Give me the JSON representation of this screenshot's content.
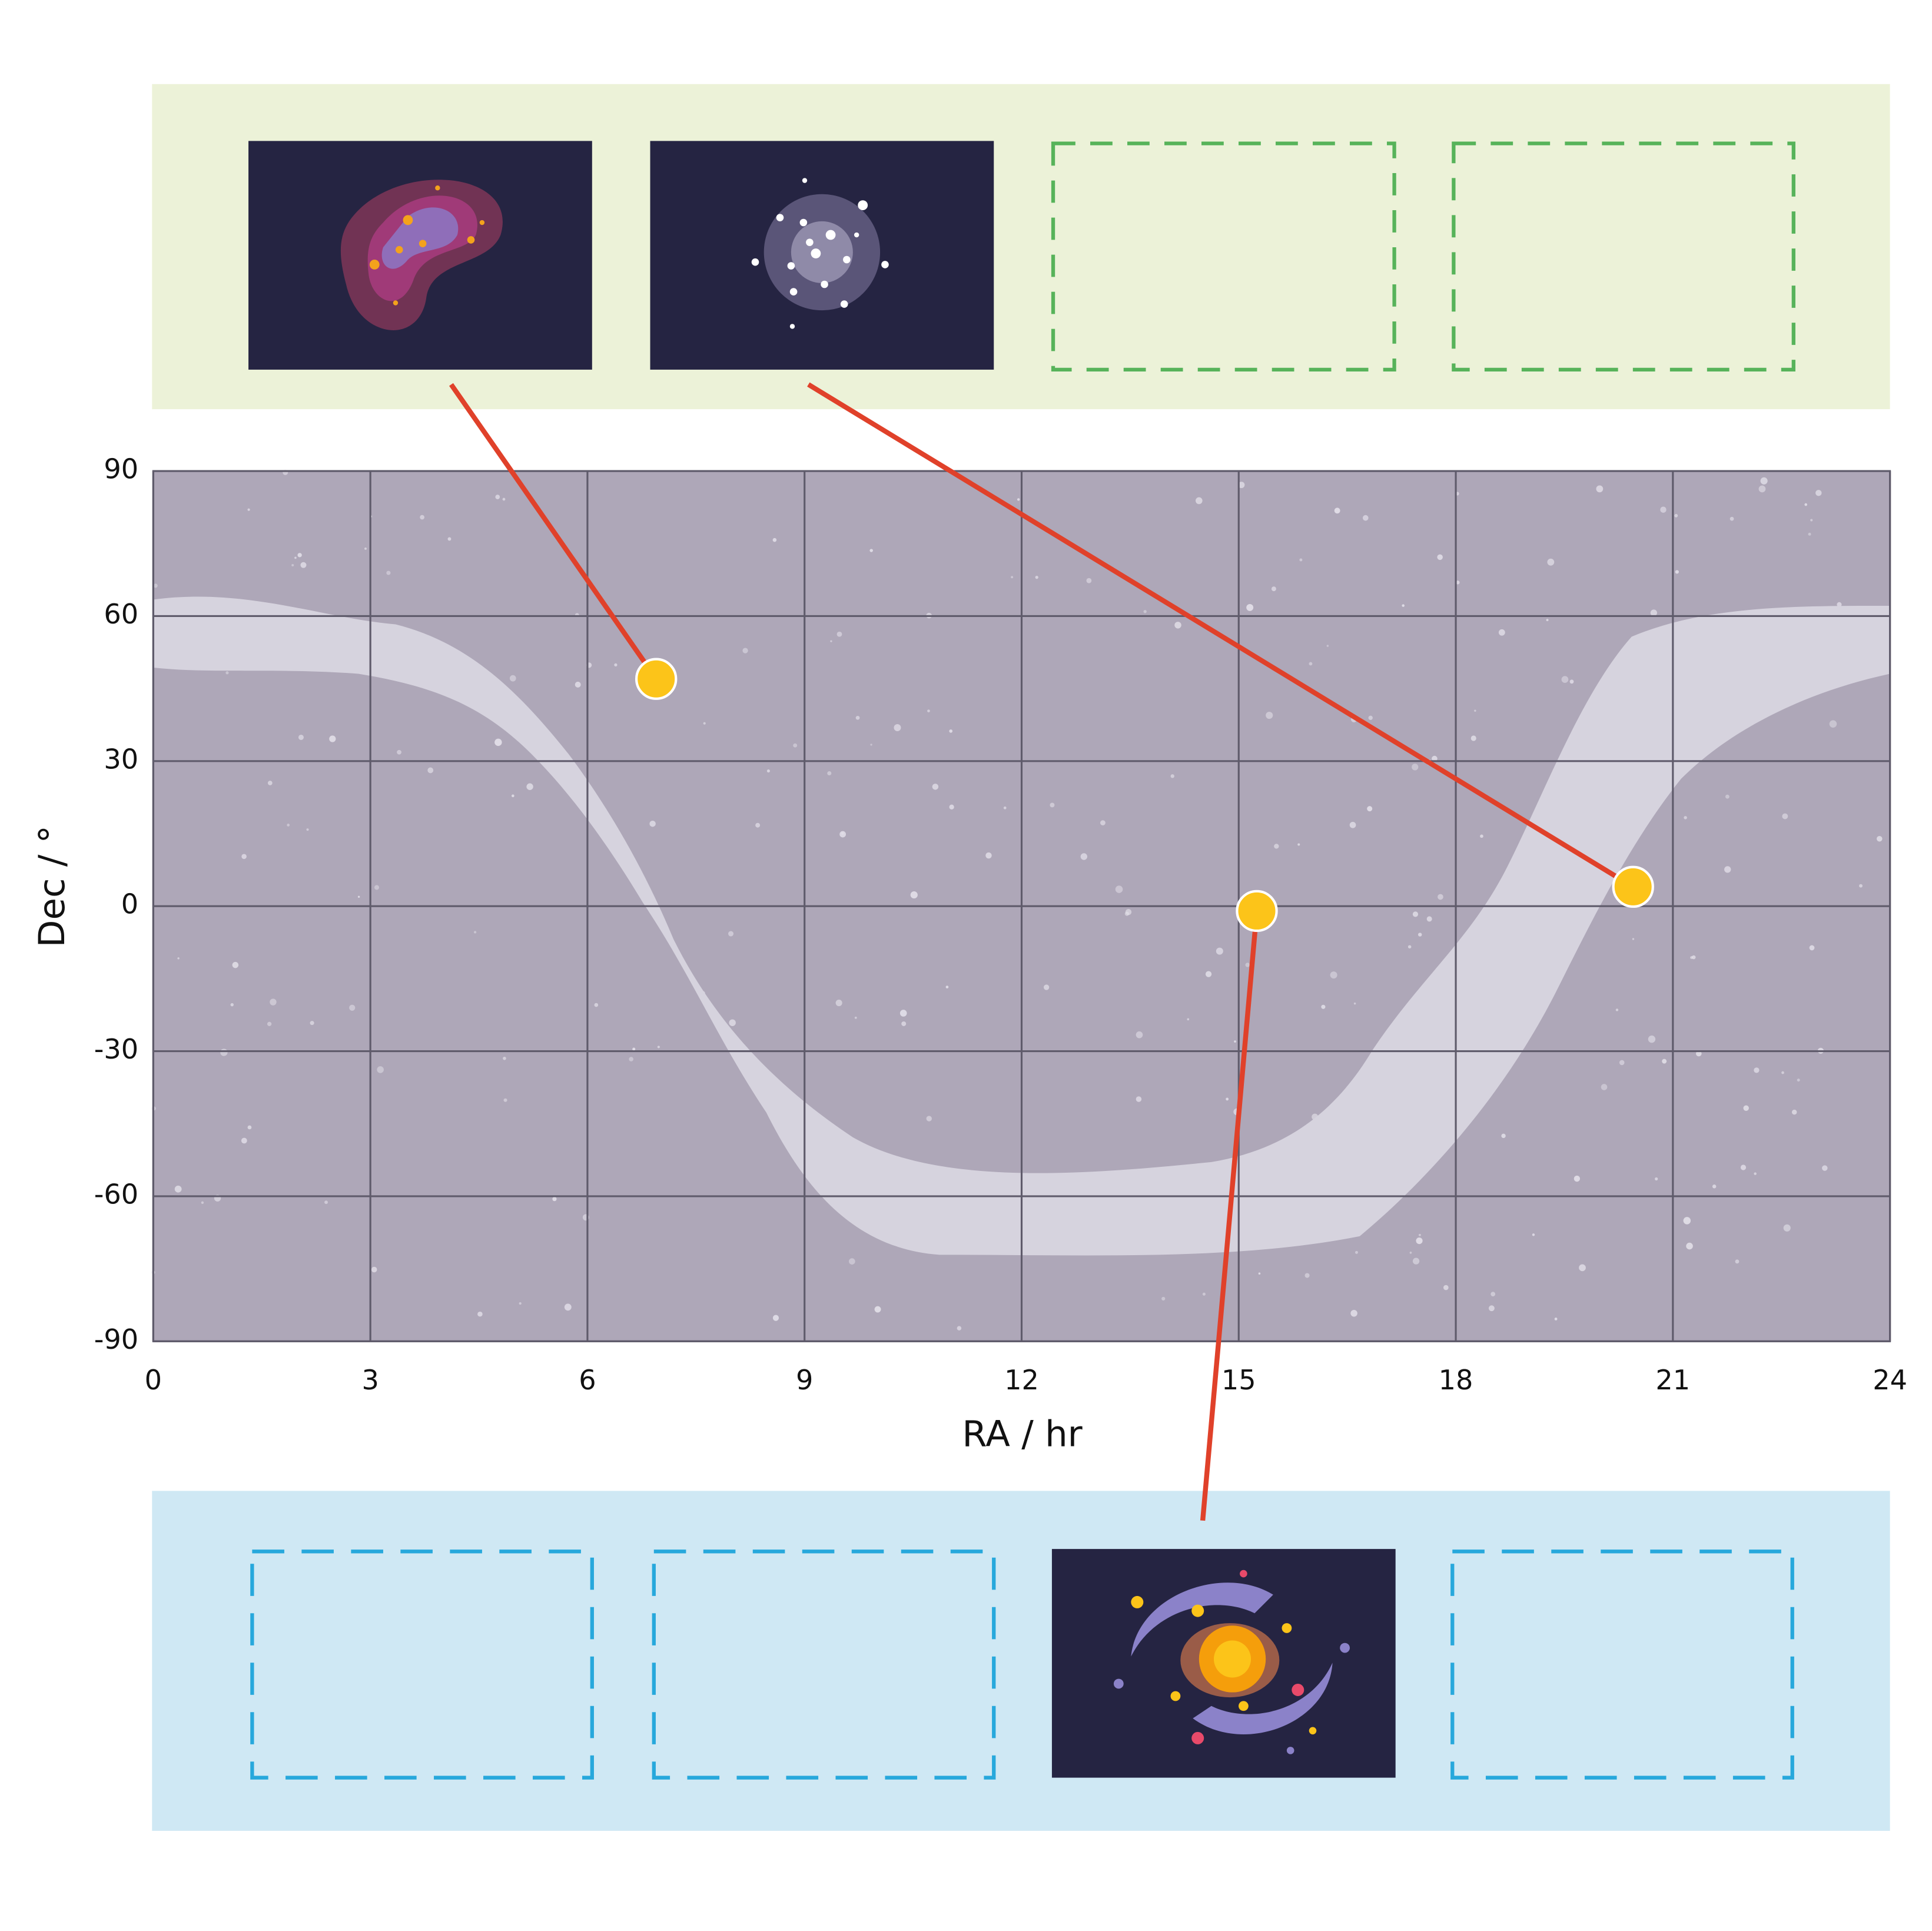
{
  "chart_data": {
    "type": "scatter",
    "x_label": "RA / hr",
    "y_label": "Dec / °",
    "x": [
      6.95,
      15.25,
      20.45
    ],
    "values": [
      47,
      -1,
      4
    ],
    "color": "#fcc419",
    "grid": true,
    "xlim": [
      0,
      24
    ],
    "ylim": [
      -90,
      90
    ],
    "xticks": [
      0,
      3,
      6,
      9,
      12,
      15,
      18,
      21,
      24
    ],
    "yticks": [
      -90,
      -60,
      -30,
      0,
      30,
      60,
      90
    ]
  }
}
